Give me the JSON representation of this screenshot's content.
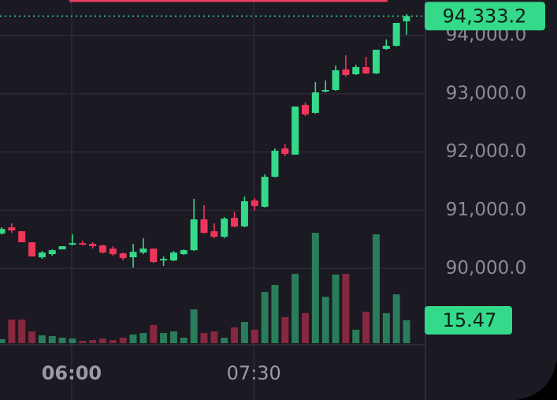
{
  "chart_data": {
    "type": "candlestick",
    "categories": [
      null,
      null,
      null,
      null,
      null,
      null,
      null,
      "06:00",
      null,
      null,
      null,
      null,
      null,
      null,
      null,
      null,
      null,
      null,
      null,
      null,
      null,
      null,
      null,
      null,
      null,
      "07:30",
      null,
      null,
      null,
      null,
      null,
      null,
      null,
      null,
      null,
      null,
      null,
      null,
      null,
      null,
      null
    ],
    "open": [
      90599,
      90707,
      90640,
      90450,
      90192,
      90247,
      90328,
      90409,
      90436,
      90423,
      90396,
      90342,
      90260,
      90192,
      90274,
      90342,
      90138,
      90138,
      90247,
      90314,
      90843,
      90640,
      90545,
      90870,
      90721,
      91168,
      91060,
      91575,
      92062,
      91954,
      92808,
      92672,
      93038,
      93065,
      93417,
      93336,
      93458,
      93350,
      93770,
      93824,
      94244
    ],
    "high": [
      90707,
      90775,
      90640,
      90450,
      90301,
      90328,
      90382,
      90585,
      90477,
      90450,
      90409,
      90382,
      90274,
      90423,
      90518,
      90342,
      90206,
      90301,
      90328,
      91195,
      91087,
      90775,
      90883,
      90978,
      91236,
      91209,
      91615,
      92062,
      92130,
      92780,
      92848,
      93201,
      93228,
      93485,
      93661,
      93499,
      93634,
      93756,
      93932,
      94217,
      94366
    ],
    "low": [
      90585,
      90612,
      90450,
      90206,
      90165,
      90220,
      90328,
      90396,
      90396,
      90342,
      90260,
      90220,
      90138,
      90016,
      90247,
      90098,
      90044,
      90125,
      90233,
      90301,
      90599,
      90518,
      90518,
      90707,
      90707,
      90992,
      91046,
      91561,
      91927,
      91954,
      92618,
      92659,
      93024,
      93052,
      93295,
      93323,
      93336,
      93336,
      93756,
      93810,
      94014
    ],
    "close": [
      90680,
      90653,
      90450,
      90206,
      90274,
      90314,
      90382,
      90436,
      90409,
      90382,
      90274,
      90247,
      90179,
      90287,
      90342,
      90111,
      90165,
      90274,
      90314,
      90843,
      90612,
      90545,
      90856,
      90721,
      91154,
      91073,
      91575,
      92022,
      91968,
      92780,
      92645,
      93024,
      93065,
      93404,
      93323,
      93458,
      93350,
      93756,
      93824,
      94217,
      94333.2
    ],
    "volume": [
      2.7,
      16,
      16,
      8,
      5.3,
      4.8,
      3.7,
      3.2,
      1.6,
      2.1,
      3.2,
      2.1,
      3.7,
      5.9,
      6.9,
      12.3,
      6.9,
      8,
      3.7,
      22.9,
      6.9,
      8,
      3.7,
      10.7,
      14.4,
      9.1,
      34.7,
      39.4,
      17.6,
      46.9,
      20.3,
      74.6,
      31.4,
      46.4,
      46.9,
      9.1,
      21.3,
      73.6,
      20.3,
      33,
      15.47
    ],
    "ylim": [
      88690,
      94610
    ],
    "yticks": [
      {
        "value": 90000,
        "label": "90,000.0"
      },
      {
        "value": 91000,
        "label": "91,000.0"
      },
      {
        "value": 92000,
        "label": "92,000.0"
      },
      {
        "value": 93000,
        "label": "93,000.0"
      },
      {
        "value": 94000,
        "label": "94,000.0"
      }
    ],
    "y2lim": [
      0,
      232
    ],
    "up_color": "#34d98a",
    "down_color": "#f0365a",
    "volume_up_color": "#2a7d5a",
    "volume_down_color": "#86283e",
    "grid": true,
    "price_label": {
      "value": 94333.2,
      "label": "94,333.2"
    },
    "volume_label": {
      "value": 15.47,
      "label": "15.47"
    }
  }
}
